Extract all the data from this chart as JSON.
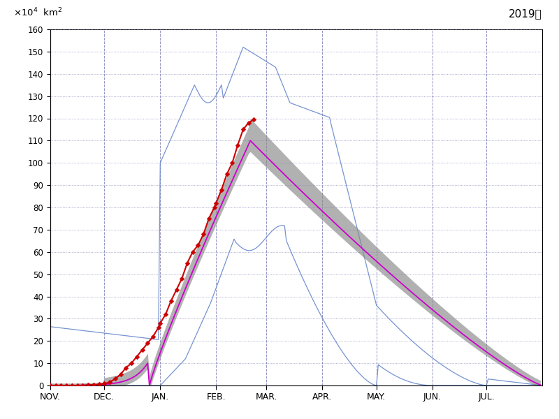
{
  "title": "2019年",
  "ylim": [
    0,
    160
  ],
  "yticks": [
    0,
    10,
    20,
    30,
    40,
    50,
    60,
    70,
    80,
    90,
    100,
    110,
    120,
    130,
    140,
    150,
    160
  ],
  "months": [
    "NOV.",
    "DEC.",
    "JAN.",
    "FEB.",
    "MAR.",
    "APR.",
    "MAY.",
    "JUN.",
    "JUL."
  ],
  "month_lengths": [
    30,
    31,
    31,
    28,
    31,
    30,
    31,
    30,
    31
  ],
  "background_color": "#ffffff",
  "grid_color": "#8888bb",
  "clim_mean_color": "#cc00cc",
  "clim_band_color": "#888888",
  "extremes_color": "#6688cc",
  "obs_color": "#cc0000"
}
